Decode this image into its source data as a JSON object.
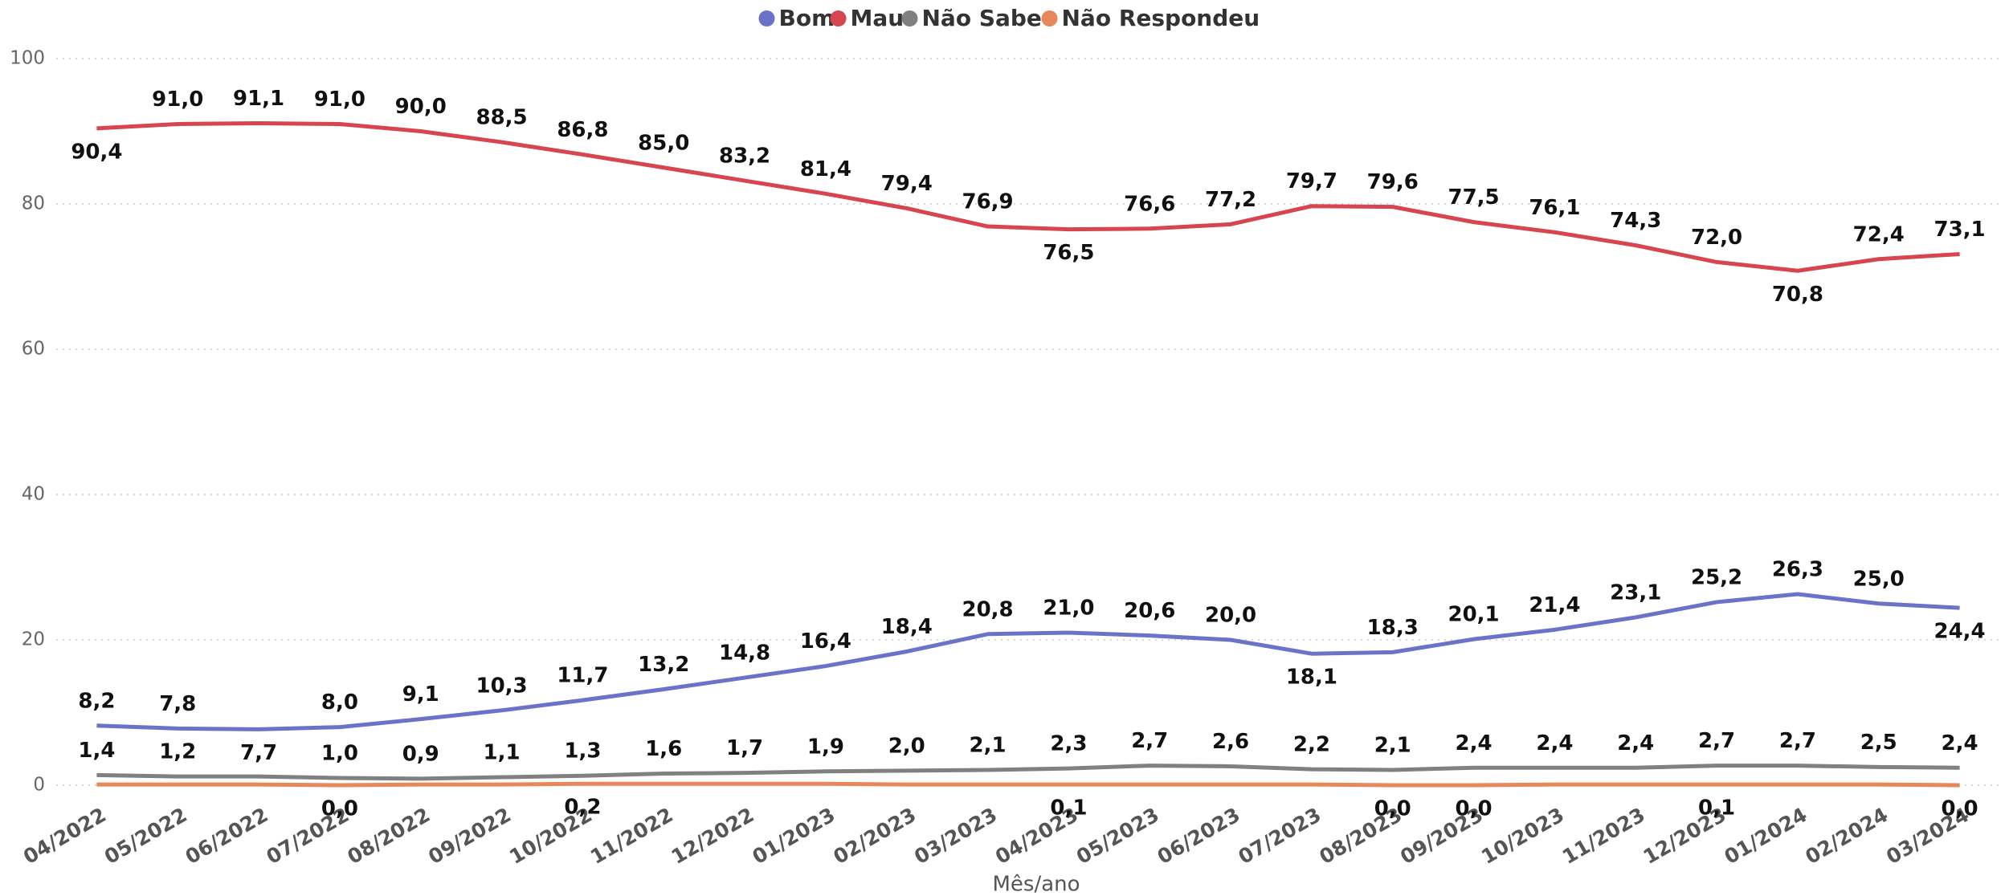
{
  "chart_data": {
    "type": "line",
    "x_label": "Mês/ano",
    "categories": [
      "04/2022",
      "05/2022",
      "06/2022",
      "07/2022",
      "08/2022",
      "09/2022",
      "10/2022",
      "11/2022",
      "12/2022",
      "01/2023",
      "02/2023",
      "03/2023",
      "04/2023",
      "05/2023",
      "06/2023",
      "07/2023",
      "08/2023",
      "09/2023",
      "10/2023",
      "11/2023",
      "12/2023",
      "01/2024",
      "02/2024",
      "03/2024"
    ],
    "series": [
      {
        "name": "Bom",
        "color": "#6b73c9",
        "values": [
          8.2,
          7.8,
          7.7,
          8.0,
          9.1,
          10.3,
          11.7,
          13.2,
          14.8,
          16.4,
          18.4,
          20.8,
          21.0,
          20.6,
          20.0,
          18.1,
          18.3,
          20.1,
          21.4,
          23.1,
          25.2,
          26.3,
          25.0,
          24.4
        ],
        "value_labels": [
          "8,2",
          "7,8",
          "7,7",
          "8,0",
          "9,1",
          "10,3",
          "11,7",
          "13,2",
          "14,8",
          "16,4",
          "18,4",
          "20,8",
          "21,0",
          "20,6",
          "20,0",
          "18,1",
          "18,3",
          "20,1",
          "21,4",
          "23,1",
          "25,2",
          "26,3",
          "25,0",
          "24,4"
        ]
      },
      {
        "name": "Mau",
        "color": "#d64550",
        "values": [
          90.4,
          91.0,
          91.1,
          91.0,
          90.0,
          88.5,
          86.8,
          85.0,
          83.2,
          81.4,
          79.4,
          76.9,
          76.5,
          76.6,
          77.2,
          79.7,
          79.6,
          77.5,
          76.1,
          74.3,
          72.0,
          70.8,
          72.4,
          73.1
        ],
        "value_labels": [
          "90,4",
          "91,0",
          "91,1",
          "91,0",
          "90,0",
          "88,5",
          "86,8",
          "85,0",
          "83,2",
          "81,4",
          "79,4",
          "76,9",
          "76,5",
          "76,6",
          "77,2",
          "79,7",
          "79,6",
          "77,5",
          "76,1",
          "74,3",
          "72,0",
          "70,8",
          "72,4",
          "73,1"
        ]
      },
      {
        "name": "Não Sabe",
        "color": "#808080",
        "values": [
          1.4,
          1.2,
          1.2,
          1.0,
          0.9,
          1.1,
          1.3,
          1.6,
          1.7,
          1.9,
          2.0,
          2.1,
          2.3,
          2.7,
          2.6,
          2.2,
          2.1,
          2.4,
          2.4,
          2.4,
          2.7,
          2.7,
          2.5,
          2.4
        ],
        "value_labels": [
          "1,4",
          "1,2",
          null,
          "1,0",
          "0,9",
          "1,1",
          "1,3",
          "1,6",
          "1,7",
          "1,9",
          "2,0",
          "2,1",
          "2,3",
          "2,7",
          "2,6",
          "2,2",
          "2,1",
          "2,4",
          "2,4",
          "2,4",
          "2,7",
          "2,7",
          "2,5",
          "2,4"
        ]
      },
      {
        "name": "Não Respondeu",
        "color": "#e8875a",
        "values": [
          0.1,
          0.1,
          0.1,
          0.0,
          0.1,
          0.1,
          0.2,
          0.2,
          0.2,
          0.2,
          0.1,
          0.1,
          0.1,
          0.1,
          0.1,
          0.1,
          0.0,
          0.0,
          0.1,
          0.1,
          0.1,
          0.1,
          0.1,
          0.0
        ],
        "value_labels": [
          null,
          null,
          null,
          "0,0",
          null,
          null,
          "0,2",
          null,
          null,
          null,
          null,
          null,
          "0,1",
          null,
          null,
          null,
          "0,0",
          "0,0",
          null,
          null,
          "0,1",
          null,
          null,
          "0,0"
        ]
      }
    ],
    "ylim": [
      0,
      100
    ],
    "yticks": [
      0,
      20,
      40,
      60,
      80,
      100
    ],
    "grid": true,
    "legend": "top"
  }
}
